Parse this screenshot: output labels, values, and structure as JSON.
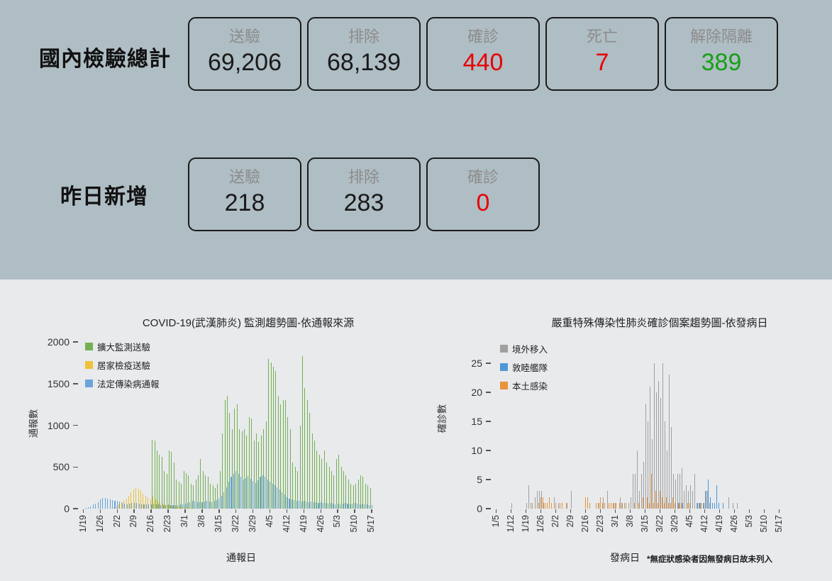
{
  "colors": {
    "top_section_bg": "#afbdc4",
    "charts_section_bg": "#e8eaec",
    "negative_red": "#e80000",
    "released_green": "#15a015",
    "box_border": "#1b1b1b",
    "muted_label": "#8c8c8c"
  },
  "summary": {
    "rows": [
      {
        "label": "國內檢驗總計",
        "boxes": [
          {
            "label": "送驗",
            "value": "69,206",
            "value_color": "#1a1a1a"
          },
          {
            "label": "排除",
            "value": "68,139",
            "value_color": "#1a1a1a"
          },
          {
            "label": "確診",
            "value": "440",
            "value_color": "#e80000"
          },
          {
            "label": "死亡",
            "value": "7",
            "value_color": "#e80000"
          },
          {
            "label": "解除隔離",
            "value": "389",
            "value_color": "#15a015"
          }
        ]
      },
      {
        "label": "昨日新增",
        "boxes": [
          {
            "label": "送驗",
            "value": "218",
            "value_color": "#1a1a1a"
          },
          {
            "label": "排除",
            "value": "283",
            "value_color": "#1a1a1a"
          },
          {
            "label": "確診",
            "value": "0",
            "value_color": "#e80000"
          }
        ]
      }
    ]
  },
  "chart_data": [
    {
      "type": "bar",
      "title": "COVID-19(武漢肺炎) 監測趨勢圖-依通報來源",
      "xlabel": "通報日",
      "ylabel": "通報數",
      "ylim": [
        0,
        2000
      ],
      "ytick_step": 500,
      "grid": false,
      "legend_position": "top-left",
      "note": "",
      "x_ticks": [
        "1/19",
        "1/26",
        "2/2",
        "2/9",
        "2/16",
        "2/23",
        "3/1",
        "3/8",
        "3/15",
        "3/22",
        "3/29",
        "4/5",
        "4/12",
        "4/19",
        "4/26",
        "5/3",
        "5/10",
        "5/17"
      ],
      "tick_every": 7,
      "x_range": "daily 1/19 - 5/17",
      "series": [
        {
          "name": "擴大監測送驗",
          "color": "#74b152",
          "values": [
            0,
            0,
            0,
            0,
            0,
            0,
            0,
            0,
            0,
            0,
            0,
            0,
            0,
            0,
            0,
            0,
            0,
            0,
            0,
            0,
            0,
            0,
            0,
            0,
            0,
            0,
            0,
            0,
            0,
            830,
            820,
            700,
            650,
            620,
            450,
            420,
            700,
            680,
            550,
            350,
            320,
            300,
            450,
            430,
            400,
            300,
            280,
            350,
            400,
            600,
            450,
            400,
            380,
            300,
            280,
            250,
            300,
            450,
            900,
            1300,
            1350,
            1150,
            950,
            1200,
            1250,
            950,
            930,
            950,
            880,
            1100,
            1080,
            820,
            900,
            800,
            880,
            950,
            1050,
            1800,
            1750,
            1700,
            1650,
            1350,
            1250,
            1300,
            1300,
            1100,
            950,
            550,
            500,
            450,
            1000,
            1830,
            1450,
            1300,
            1150,
            900,
            820,
            700,
            650,
            600,
            700,
            550,
            500,
            450,
            400,
            600,
            650,
            500,
            450,
            400,
            350,
            300,
            280,
            300,
            350,
            400,
            380,
            300,
            280,
            250
          ]
        },
        {
          "name": "居家檢疫送驗",
          "color": "#eec239",
          "values": [
            0,
            0,
            0,
            0,
            0,
            0,
            0,
            0,
            0,
            0,
            0,
            0,
            0,
            10,
            30,
            50,
            80,
            100,
            120,
            150,
            200,
            230,
            250,
            240,
            220,
            180,
            150,
            130,
            110,
            150,
            120,
            90,
            70,
            60,
            50,
            45,
            40,
            35,
            30,
            30,
            25,
            20,
            15,
            10,
            10,
            5,
            5,
            0,
            0,
            0,
            0,
            0,
            0,
            0,
            0,
            0,
            0,
            0,
            0,
            0,
            0,
            0,
            0,
            0,
            0,
            0,
            0,
            0,
            0,
            0,
            0,
            0,
            0,
            0,
            0,
            0,
            0,
            0,
            0,
            0,
            0,
            0,
            0,
            0,
            0,
            0,
            0,
            0,
            0,
            0,
            0,
            0,
            0,
            0,
            0,
            0,
            0,
            0,
            0,
            0,
            0,
            0,
            0,
            0,
            0,
            0,
            0,
            0,
            0,
            0,
            0,
            0,
            0,
            0,
            0,
            0,
            0,
            0,
            0,
            0
          ]
        },
        {
          "name": "法定傳染病通報",
          "color": "#6ba4d9",
          "values": [
            0,
            5,
            15,
            30,
            50,
            60,
            80,
            110,
            125,
            130,
            120,
            110,
            100,
            95,
            90,
            85,
            70,
            60,
            55,
            60,
            65,
            70,
            65,
            60,
            55,
            50,
            55,
            50,
            55,
            60,
            55,
            50,
            45,
            40,
            45,
            50,
            45,
            40,
            40,
            45,
            50,
            55,
            60,
            70,
            80,
            90,
            85,
            80,
            75,
            80,
            85,
            90,
            85,
            80,
            90,
            100,
            120,
            150,
            200,
            260,
            320,
            380,
            420,
            450,
            420,
            380,
            350,
            370,
            390,
            360,
            330,
            310,
            340,
            380,
            400,
            380,
            350,
            320,
            300,
            280,
            260,
            230,
            200,
            170,
            140,
            120,
            110,
            100,
            95,
            90,
            85,
            90,
            85,
            80,
            85,
            80,
            75,
            70,
            75,
            70,
            65,
            60,
            65,
            60,
            55,
            60,
            55,
            60,
            65,
            60,
            55,
            60,
            65,
            60,
            55,
            60,
            55,
            50,
            45,
            40
          ]
        }
      ]
    },
    {
      "type": "bar",
      "title": "嚴重特殊傳染性肺炎確診個案趨勢圖-依發病日",
      "xlabel": "發病日",
      "ylabel": "確診數",
      "ylim": [
        0,
        25
      ],
      "ytick_step": 5,
      "grid": false,
      "legend_position": "top-left",
      "note": "*無症狀感染者因無發病日故未列入",
      "x_ticks": [
        "1/5",
        "1/12",
        "1/19",
        "1/26",
        "2/2",
        "2/9",
        "2/16",
        "2/23",
        "3/1",
        "3/8",
        "3/15",
        "3/22",
        "3/29",
        "4/5",
        "4/12",
        "4/19",
        "4/26",
        "5/3",
        "5/10",
        "5/17"
      ],
      "tick_every": 7,
      "x_range": "daily 1/5 - 5/17",
      "series": [
        {
          "name": "境外移入",
          "color": "#a0a0a0",
          "values": [
            0,
            0,
            0,
            0,
            0,
            0,
            0,
            0,
            1,
            0,
            0,
            0,
            0,
            0,
            0,
            1,
            4,
            1,
            0,
            2,
            3,
            3,
            3,
            1,
            0,
            0,
            0,
            0,
            2,
            0,
            1,
            0,
            0,
            0,
            1,
            0,
            3,
            0,
            0,
            0,
            0,
            0,
            0,
            0,
            0,
            0,
            0,
            0,
            0,
            1,
            0,
            2,
            0,
            3,
            0,
            0,
            1,
            1,
            0,
            2,
            1,
            1,
            0,
            1,
            2,
            6,
            6,
            10,
            3,
            6,
            8,
            18,
            15,
            21,
            12,
            25,
            20,
            22,
            19,
            25,
            15,
            10,
            23,
            14,
            6,
            5,
            6,
            6,
            7,
            3,
            4,
            3,
            4,
            3,
            6,
            1,
            1,
            1,
            1,
            3,
            3,
            1,
            0,
            0,
            0,
            0,
            0,
            0,
            0,
            0,
            2,
            0,
            1,
            0,
            1,
            0,
            0,
            0,
            0,
            0,
            0,
            0,
            0,
            0,
            0,
            0,
            0,
            0,
            0,
            0,
            0,
            0,
            0,
            0
          ]
        },
        {
          "name": "敦睦艦隊",
          "color": "#4f96d8",
          "values": [
            0,
            0,
            0,
            0,
            0,
            0,
            0,
            0,
            0,
            0,
            0,
            0,
            0,
            0,
            0,
            0,
            0,
            0,
            0,
            0,
            0,
            0,
            0,
            0,
            0,
            0,
            0,
            0,
            0,
            0,
            0,
            0,
            0,
            0,
            0,
            0,
            0,
            0,
            0,
            0,
            0,
            0,
            0,
            0,
            0,
            0,
            0,
            0,
            0,
            0,
            0,
            0,
            0,
            0,
            0,
            0,
            0,
            0,
            0,
            0,
            0,
            0,
            0,
            0,
            0,
            0,
            0,
            0,
            0,
            0,
            0,
            0,
            0,
            0,
            0,
            0,
            0,
            0,
            0,
            0,
            0,
            0,
            0,
            0,
            0,
            0,
            1,
            0,
            1,
            0,
            0,
            0,
            0,
            0,
            0,
            1,
            1,
            0,
            1,
            3,
            5,
            2,
            1,
            1,
            4,
            1,
            0,
            1,
            0,
            0,
            0,
            0,
            0,
            0,
            0,
            0,
            0,
            0,
            0,
            0,
            0,
            0,
            0,
            0,
            0,
            0,
            0,
            0,
            0,
            0,
            0,
            0,
            0,
            0
          ]
        },
        {
          "name": "本土感染",
          "color": "#e8943a",
          "values": [
            0,
            0,
            0,
            0,
            0,
            0,
            0,
            0,
            0,
            0,
            0,
            0,
            0,
            0,
            0,
            0,
            0,
            1,
            0,
            0,
            1,
            2,
            2,
            1,
            1,
            2,
            1,
            0,
            1,
            0,
            1,
            1,
            0,
            1,
            0,
            0,
            0,
            0,
            0,
            0,
            0,
            0,
            2,
            2,
            1,
            0,
            0,
            1,
            1,
            2,
            1,
            1,
            0,
            1,
            1,
            1,
            1,
            0,
            1,
            1,
            0,
            1,
            0,
            0,
            0,
            1,
            0,
            1,
            0,
            2,
            0,
            2,
            1,
            6,
            1,
            3,
            1,
            3,
            2,
            1,
            2,
            1,
            1,
            2,
            1,
            0,
            1,
            1,
            0,
            0,
            1,
            1,
            0,
            0,
            0,
            0,
            1,
            0,
            0,
            0,
            0,
            0,
            0,
            0,
            0,
            0,
            0,
            0,
            0,
            0,
            0,
            0,
            0,
            0,
            0,
            0,
            0,
            0,
            0,
            0,
            0,
            0,
            0,
            0,
            0,
            0,
            0,
            0,
            0,
            0,
            0,
            0,
            0,
            0
          ]
        }
      ]
    }
  ]
}
